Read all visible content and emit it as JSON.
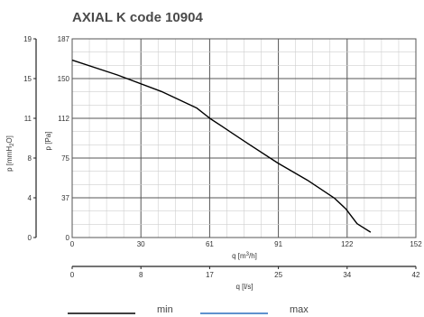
{
  "chart_data": {
    "type": "line",
    "title": "AXIAL K code 10904",
    "x_axis_primary": {
      "label_main": "q [m",
      "label_sup": "3",
      "label_end": "/h]",
      "ticks": [
        0,
        30,
        61,
        91,
        122,
        152
      ],
      "range": [
        0,
        152
      ]
    },
    "x_axis_secondary": {
      "label": "q [l/s]",
      "ticks": [
        0,
        8,
        17,
        25,
        34,
        42
      ],
      "range": [
        0,
        42
      ]
    },
    "y_axis_primary": {
      "label": "p [Pa]",
      "ticks": [
        0,
        37,
        75,
        112,
        150,
        187
      ],
      "range": [
        0,
        187
      ]
    },
    "y_axis_secondary": {
      "label_main": "p [mmH",
      "label_sub": "2",
      "label_end": "O]",
      "ticks": [
        0,
        4,
        8,
        11,
        15,
        19
      ],
      "range": [
        0,
        19
      ]
    },
    "grid": true,
    "series": [
      {
        "name": "",
        "color": "#000000",
        "x": [
          0,
          20,
          40,
          55,
          61,
          66,
          78,
          91,
          104,
          116,
          121,
          126,
          132
        ],
        "y": [
          167,
          153,
          137,
          122,
          112,
          105,
          88,
          70,
          54,
          37,
          27,
          13,
          5
        ]
      }
    ],
    "legend": {
      "position": "bottom",
      "entries": [
        {
          "label": "min",
          "color": "#000000"
        },
        {
          "label": "max",
          "color": "#2a6ebd"
        }
      ]
    }
  }
}
